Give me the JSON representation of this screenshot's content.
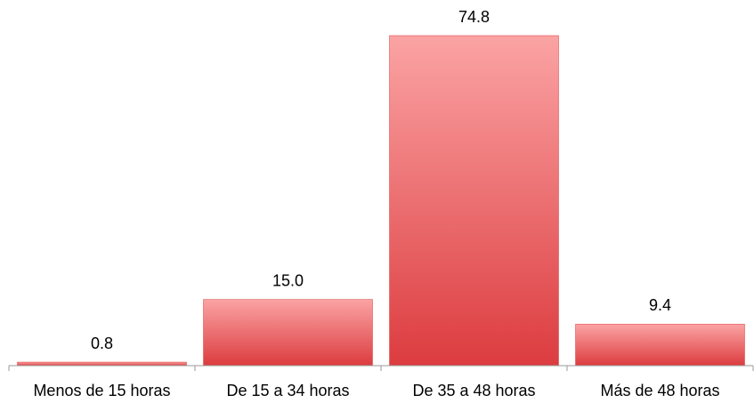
{
  "chart_data": {
    "type": "bar",
    "categories": [
      "Menos de 15 horas",
      "De 15 a 34 horas",
      "De 35 a 48 horas",
      "Más de 48 horas"
    ],
    "values": [
      0.8,
      15.0,
      74.8,
      9.4
    ],
    "value_labels": [
      "0.8",
      "15.0",
      "74.8",
      "9.4"
    ],
    "color": "#dc3c3f"
  }
}
